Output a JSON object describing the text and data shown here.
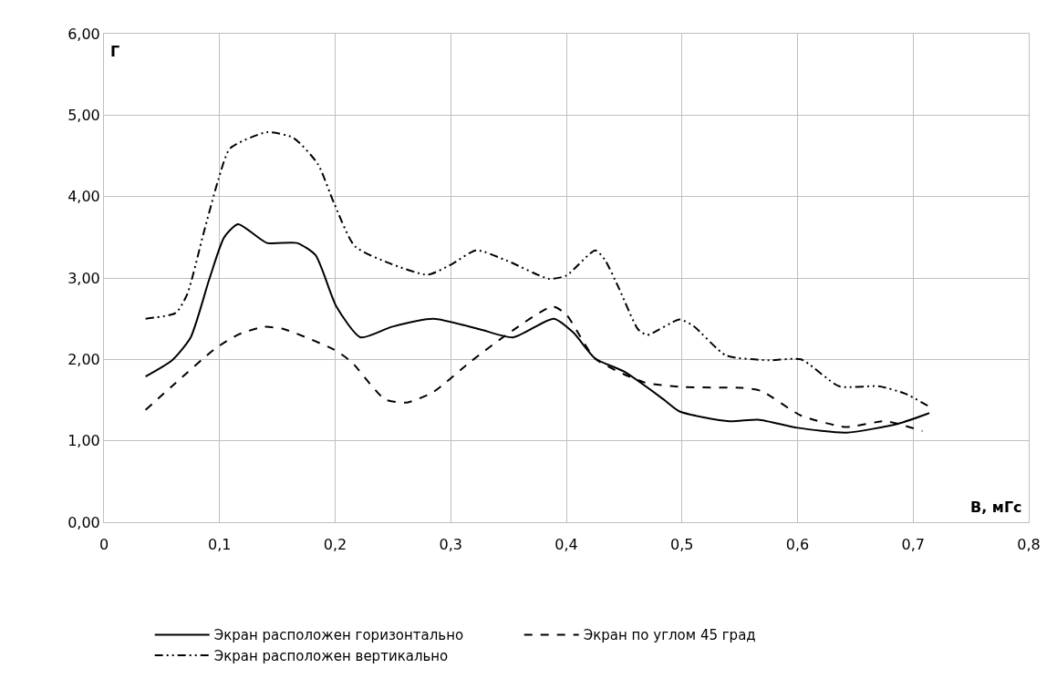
{
  "chart_data": {
    "type": "line",
    "xlabel": "В, мГс",
    "ylabel": "Г",
    "xlim": [
      0,
      0.8
    ],
    "xticks": [
      0,
      {
        "value": 0.1,
        "label": "0,1"
      },
      {
        "value": 0.2,
        "label": "0,2"
      },
      {
        "value": 0.3,
        "label": "0,3"
      },
      {
        "value": 0.4,
        "label": "0,4"
      },
      {
        "value": 0.5,
        "label": "0,5"
      },
      {
        "value": 0.6,
        "label": "0,6"
      },
      {
        "value": 0.7,
        "label": "0,7"
      },
      {
        "value": 0.8,
        "label": "0,8"
      }
    ],
    "ylim": [
      0,
      6
    ],
    "yticks": [
      {
        "value": 0,
        "label": "0,00"
      },
      {
        "value": 1,
        "label": "1,00"
      },
      {
        "value": 2,
        "label": "2,00"
      },
      {
        "value": 3,
        "label": "3,00"
      },
      {
        "value": 4,
        "label": "4,00"
      },
      {
        "value": 5,
        "label": "5,00"
      },
      {
        "value": 6,
        "label": "6,00"
      }
    ],
    "grid": true,
    "legend": "bottom",
    "series": [
      {
        "name": "Экран расположен горизонтально",
        "color": "#000000",
        "line_style": "solid",
        "x": [
          0.036,
          0.059,
          0.075,
          0.091,
          0.104,
          0.116,
          0.141,
          0.167,
          0.183,
          0.201,
          0.222,
          0.249,
          0.285,
          0.325,
          0.354,
          0.389,
          0.406,
          0.425,
          0.45,
          0.484,
          0.498,
          0.541,
          0.566,
          0.6,
          0.642,
          0.687,
          0.714
        ],
        "values": [
          1.79,
          1.99,
          2.27,
          2.98,
          3.5,
          3.66,
          3.43,
          3.43,
          3.28,
          2.65,
          2.27,
          2.4,
          2.5,
          2.37,
          2.27,
          2.5,
          2.33,
          2.01,
          1.85,
          1.51,
          1.36,
          1.24,
          1.26,
          1.16,
          1.1,
          1.21,
          1.34
        ]
      },
      {
        "name": "Экран по углом 45 град",
        "color": "#000000",
        "line_style": "dashed",
        "x": [
          0.036,
          0.062,
          0.096,
          0.117,
          0.139,
          0.156,
          0.199,
          0.214,
          0.243,
          0.262,
          0.285,
          0.317,
          0.349,
          0.388,
          0.4,
          0.425,
          0.467,
          0.501,
          0.552,
          0.569,
          0.603,
          0.642,
          0.676,
          0.708
        ],
        "values": [
          1.38,
          1.71,
          2.13,
          2.31,
          2.4,
          2.37,
          2.12,
          1.97,
          1.51,
          1.47,
          1.6,
          1.97,
          2.31,
          2.65,
          2.55,
          2.01,
          1.72,
          1.66,
          1.65,
          1.61,
          1.31,
          1.17,
          1.24,
          1.12
        ]
      },
      {
        "name": "Экран расположен вертикально",
        "color": "#000000",
        "line_style": "dashdot",
        "x": [
          0.036,
          0.062,
          0.072,
          0.086,
          0.099,
          0.109,
          0.141,
          0.164,
          0.185,
          0.199,
          0.217,
          0.249,
          0.28,
          0.301,
          0.322,
          0.349,
          0.385,
          0.4,
          0.425,
          0.433,
          0.445,
          0.462,
          0.47,
          0.498,
          0.51,
          0.538,
          0.575,
          0.603,
          0.636,
          0.67,
          0.693,
          0.714
        ],
        "values": [
          2.5,
          2.57,
          2.8,
          3.54,
          4.21,
          4.59,
          4.79,
          4.72,
          4.4,
          3.92,
          3.39,
          3.17,
          3.04,
          3.17,
          3.34,
          3.21,
          2.99,
          3.03,
          3.34,
          3.23,
          2.89,
          2.37,
          2.3,
          2.49,
          2.41,
          2.05,
          1.99,
          2.0,
          1.67,
          1.67,
          1.58,
          1.42
        ]
      }
    ]
  }
}
